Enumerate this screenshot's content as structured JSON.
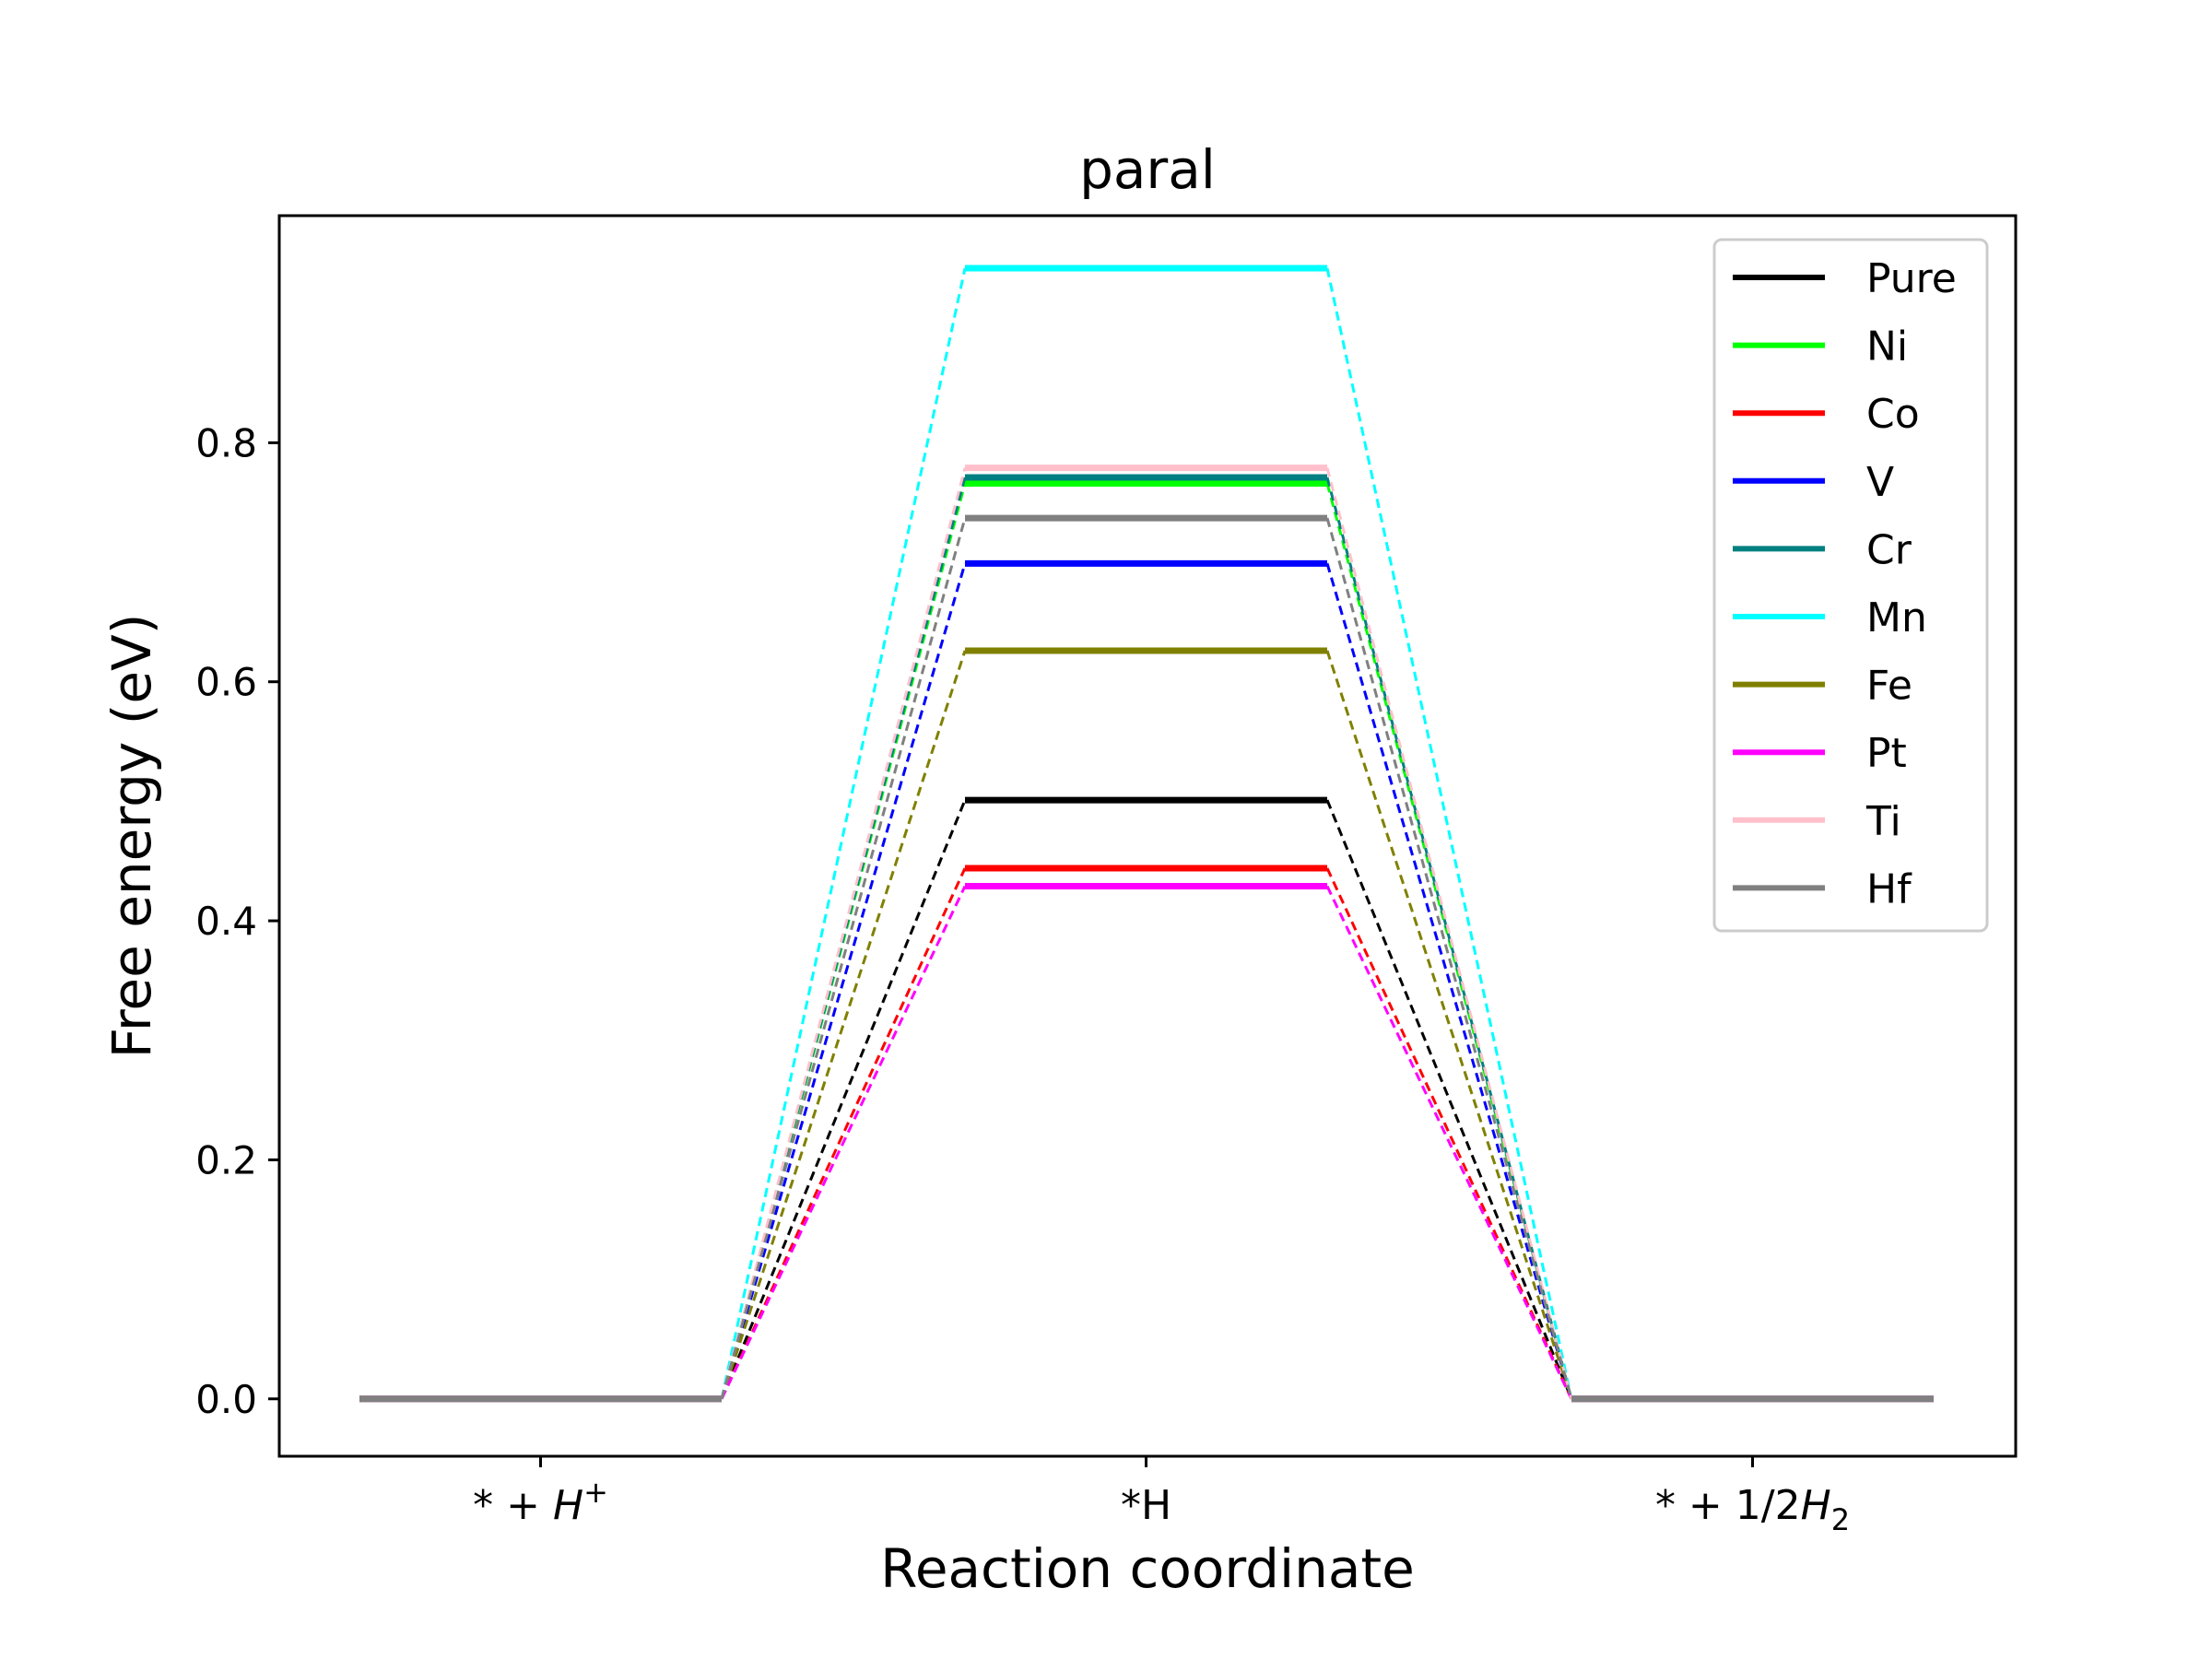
{
  "chart_data": {
    "type": "line",
    "title": "paral",
    "xlabel": "Reaction coordinate",
    "ylabel": "Free energy (eV)",
    "categories": [
      "* + H+",
      "*H",
      "* + 1/2H2"
    ],
    "x_tick_labels": [
      {
        "main": "* + ",
        "italic": "H",
        "sup": "+",
        "sub": ""
      },
      {
        "main": "*H",
        "italic": "",
        "sup": "",
        "sub": ""
      },
      {
        "main": "* + 1/2",
        "italic": "H",
        "sup": "",
        "sub": "2"
      }
    ],
    "yticks": [
      "0.0",
      "0.2",
      "0.4",
      "0.6",
      "0.8"
    ],
    "ylim": [
      -0.048,
      0.99
    ],
    "grid": false,
    "legend_position": "top-right",
    "series": [
      {
        "name": "Pure",
        "color": "#000000",
        "values": [
          0.0,
          0.501,
          0.0
        ]
      },
      {
        "name": "Ni",
        "color": "#00ff00",
        "values": [
          0.0,
          0.766,
          0.0
        ]
      },
      {
        "name": "Co",
        "color": "#ff0000",
        "values": [
          0.0,
          0.444,
          0.0
        ]
      },
      {
        "name": "V",
        "color": "#0000ff",
        "values": [
          0.0,
          0.699,
          0.0
        ]
      },
      {
        "name": "Cr",
        "color": "#008080",
        "values": [
          0.0,
          0.771,
          0.0
        ]
      },
      {
        "name": "Mn",
        "color": "#00ffff",
        "values": [
          0.0,
          0.946,
          0.0
        ]
      },
      {
        "name": "Fe",
        "color": "#808000",
        "values": [
          0.0,
          0.626,
          0.0
        ]
      },
      {
        "name": "Pt",
        "color": "#ff00ff",
        "values": [
          0.0,
          0.429,
          0.0
        ]
      },
      {
        "name": "Ti",
        "color": "#ffc0cb",
        "values": [
          0.0,
          0.779,
          0.0
        ]
      },
      {
        "name": "Hf",
        "color": "#808080",
        "values": [
          0.0,
          0.737,
          0.0
        ]
      }
    ]
  }
}
